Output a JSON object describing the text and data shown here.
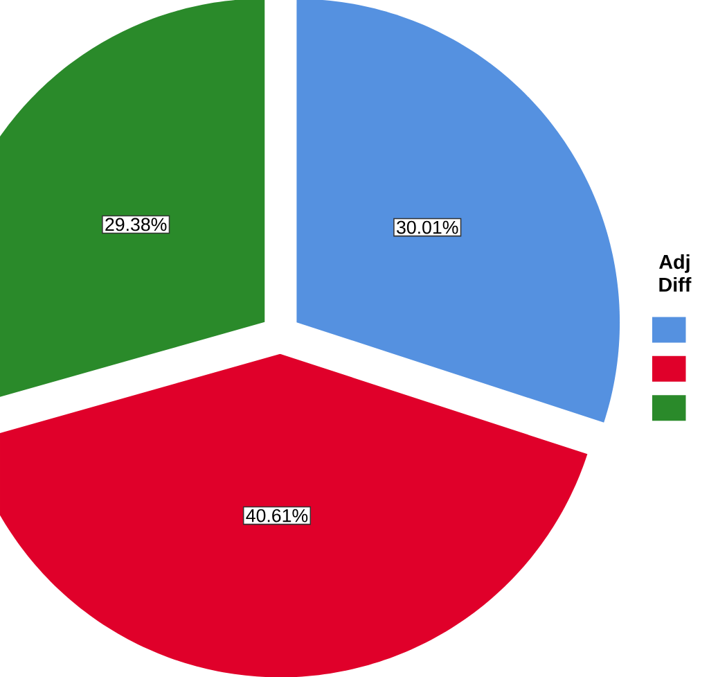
{
  "chart_data": {
    "type": "pie",
    "legend_title": "Adj Diff",
    "categories": [
      null,
      null,
      null
    ],
    "values": [
      30.01,
      40.61,
      29.38
    ],
    "value_labels": [
      "30.01%",
      "40.61%",
      "29.38%"
    ],
    "colors": [
      "#5591e0",
      "#e0002a",
      "#2a8a2a"
    ]
  }
}
